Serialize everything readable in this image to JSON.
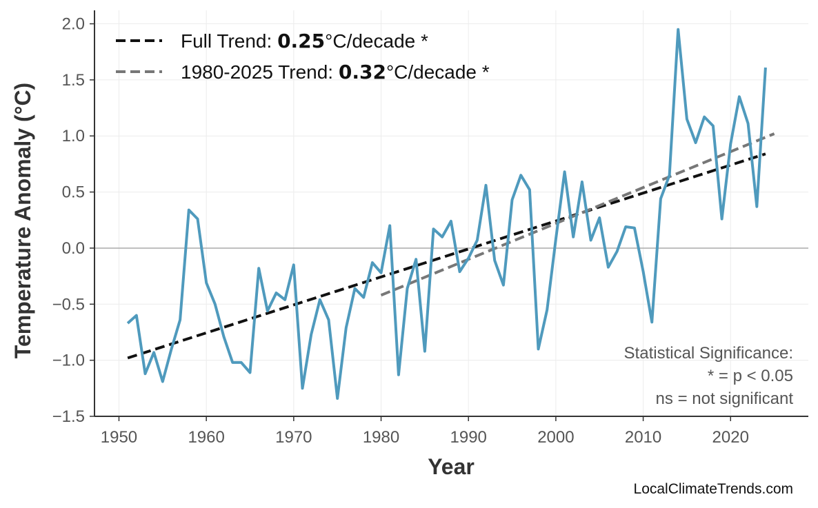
{
  "chart_data": {
    "type": "line",
    "xlabel": "Year",
    "ylabel": "Temperature Anomaly (°C)",
    "xlim": [
      1947.2,
      2028.9
    ],
    "ylim": [
      -1.5,
      2.12
    ],
    "x_ticks": [
      1950,
      1960,
      1970,
      1980,
      1990,
      2000,
      2010,
      2020
    ],
    "y_ticks": [
      -1.5,
      -1.0,
      -0.5,
      0.0,
      0.5,
      1.0,
      1.5,
      2.0
    ],
    "y_tick_labels": [
      "−1.5",
      "−1.0",
      "−0.5",
      "0.0",
      "0.5",
      "1.0",
      "1.5",
      "2.0"
    ],
    "grid": true,
    "zero_line": true,
    "series": [
      {
        "color": "#4f9abd",
        "x": [
          1951,
          1952,
          1953,
          1954,
          1955,
          1956,
          1957,
          1958,
          1959,
          1960,
          1961,
          1962,
          1963,
          1964,
          1965,
          1966,
          1967,
          1968,
          1969,
          1970,
          1971,
          1972,
          1973,
          1974,
          1975,
          1976,
          1977,
          1978,
          1979,
          1980,
          1981,
          1982,
          1983,
          1984,
          1985,
          1986,
          1987,
          1988,
          1989,
          1990,
          1991,
          1992,
          1993,
          1994,
          1995,
          1996,
          1997,
          1998,
          1999,
          2000,
          2001,
          2002,
          2003,
          2004,
          2005,
          2006,
          2007,
          2008,
          2009,
          2010,
          2011,
          2012,
          2013,
          2014,
          2015,
          2016,
          2017,
          2018,
          2019,
          2020,
          2021,
          2022,
          2023,
          2024
        ],
        "y": [
          -0.67,
          -0.6,
          -1.12,
          -0.93,
          -1.19,
          -0.9,
          -0.64,
          0.34,
          0.26,
          -0.31,
          -0.5,
          -0.79,
          -1.02,
          -1.02,
          -1.11,
          -0.18,
          -0.56,
          -0.4,
          -0.46,
          -0.15,
          -1.25,
          -0.77,
          -0.46,
          -0.64,
          -1.34,
          -0.71,
          -0.36,
          -0.44,
          -0.13,
          -0.22,
          0.2,
          -1.13,
          -0.36,
          -0.1,
          -0.92,
          0.17,
          0.1,
          0.24,
          -0.21,
          -0.09,
          0.07,
          0.56,
          -0.11,
          -0.33,
          0.43,
          0.65,
          0.52,
          -0.9,
          -0.55,
          0.08,
          0.68,
          0.1,
          0.59,
          0.07,
          0.27,
          -0.17,
          -0.03,
          0.19,
          0.18,
          -0.21,
          -0.66,
          0.44,
          0.65,
          1.95,
          1.15,
          0.94,
          1.17,
          1.09,
          0.26,
          0.93,
          1.35,
          1.11,
          0.37,
          1.61
        ]
      }
    ],
    "trends": [
      {
        "label_prefix": "Full Trend: ",
        "value": "0.25",
        "label_suffix": "°C/decade *",
        "color": "#111111",
        "x": [
          1951,
          2024
        ],
        "y": [
          -0.98,
          0.84
        ]
      },
      {
        "label_prefix": "1980-2025 Trend: ",
        "value": "0.32",
        "label_suffix": "°C/decade *",
        "color": "#777777",
        "x": [
          1980,
          2025
        ],
        "y": [
          -0.42,
          1.02
        ]
      }
    ],
    "legend_position": "top-left",
    "annotation": [
      "Statistical Significance:",
      "* = p < 0.05",
      "ns = not significant"
    ],
    "credit": "LocalClimateTrends.com"
  }
}
